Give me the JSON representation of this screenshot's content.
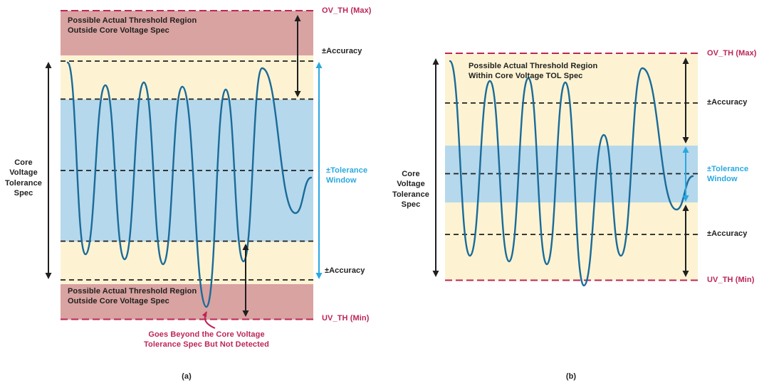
{
  "colors": {
    "band_red": "#d9a3a1",
    "band_yellow": "#fdf3d3",
    "band_blue": "#b5d8ec",
    "wave": "#1a6b99",
    "crimson": "#bc2657",
    "cyan": "#29a8e0",
    "ink": "#1f1f1f"
  },
  "panel_a": {
    "caption": "(a)",
    "left_axis_label": "Core\nVoltage\nTolerance\nSpec",
    "region_top_label": "Possible Actual Threshold Region\nOutside Core Voltage Spec",
    "region_bottom_label": "Possible Actual Threshold Region\nOutside Core Voltage Spec",
    "right_labels": {
      "ov_th": "OV_TH (Max)",
      "accuracy_top": "±Accuracy",
      "tolerance_window": "±Tolerance\nWindow",
      "accuracy_bottom": "±Accuracy",
      "uv_th": "UV_TH (Min)"
    },
    "annotation": "Goes Beyond the Core Voltage\nTolerance Spec But Not Detected"
  },
  "panel_b": {
    "caption": "(b)",
    "left_axis_label": "Core\nVoltage\nTolerance\nSpec",
    "region_title": "Possible Actual Threshold Region\nWithin Core Voltage TOL Spec",
    "right_labels": {
      "ov_th": "OV_TH (Max)",
      "accuracy_top": "±Accuracy",
      "tolerance_window": "±Tolerance\nWindow",
      "accuracy_bottom": "±Accuracy",
      "uv_th": "UV_TH (Min)"
    }
  }
}
